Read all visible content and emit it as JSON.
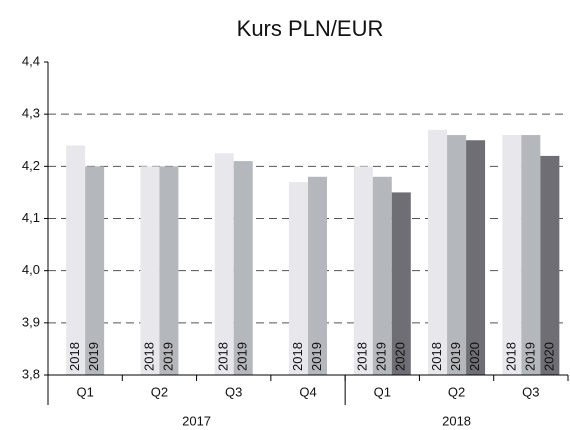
{
  "chart_data": {
    "type": "bar",
    "title": "Kurs PLN/EUR",
    "categories": [
      "Q1",
      "Q2",
      "Q3",
      "Q4",
      "Q1",
      "Q2",
      "Q3"
    ],
    "x_groups": [
      {
        "name": "2017",
        "count": 4
      },
      {
        "name": "2018",
        "count": 3
      }
    ],
    "series": [
      {
        "name": "2018",
        "color": "#e8e8ec",
        "values": [
          4.24,
          4.2,
          4.225,
          4.17,
          4.2,
          4.27,
          4.26
        ]
      },
      {
        "name": "2019",
        "color": "#b4b8bc",
        "values": [
          4.2,
          4.2,
          4.21,
          4.18,
          4.18,
          4.26,
          4.26
        ]
      },
      {
        "name": "2020",
        "color": "#6e6e74",
        "values": [
          null,
          null,
          null,
          null,
          4.15,
          4.25,
          4.22
        ]
      }
    ],
    "ylim": [
      3.8,
      4.4
    ],
    "yticks": [
      {
        "value": 3.8,
        "label": "3,8"
      },
      {
        "value": 3.9,
        "label": "3,9"
      },
      {
        "value": 4.0,
        "label": "4,0"
      },
      {
        "value": 4.1,
        "label": "4,1"
      },
      {
        "value": 4.2,
        "label": "4,2"
      },
      {
        "value": 4.3,
        "label": "4,3"
      },
      {
        "value": 4.4,
        "label": "4,4"
      }
    ],
    "grid": true
  }
}
